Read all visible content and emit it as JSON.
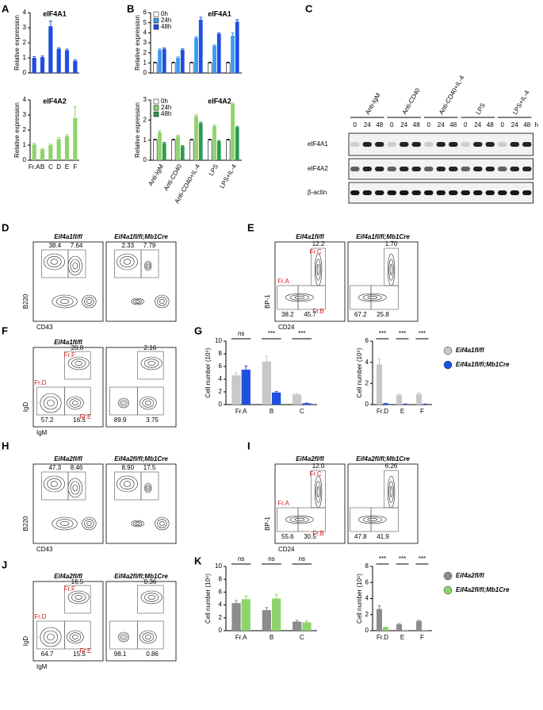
{
  "panel_labels": [
    "A",
    "B",
    "C",
    "D",
    "E",
    "F",
    "G",
    "H",
    "I",
    "J",
    "K"
  ],
  "chart_data": [
    {
      "type": "bar",
      "title": "eIF4A1",
      "y_label": "Relative expression",
      "series": [
        {
          "color": "#1f4fe0",
          "values": [
            1.0,
            1.05,
            3.1,
            1.6,
            1.5,
            0.8
          ],
          "errors": [
            0.08,
            0.08,
            0.35,
            0.07,
            0.08,
            0.07
          ]
        }
      ],
      "ylim": [
        0,
        4
      ],
      "yticks": [
        0,
        1,
        2,
        3,
        4
      ]
    },
    {
      "type": "bar",
      "title": "eIF4A2",
      "y_label": "Relative expression",
      "categories": [
        "Fr.A",
        "B",
        "C",
        "D",
        "E",
        "F"
      ],
      "series": [
        {
          "color": "#8fd46a",
          "values": [
            1.05,
            0.72,
            1.0,
            1.4,
            1.6,
            2.8
          ],
          "errors": [
            0.08,
            0.04,
            0.07,
            0.1,
            0.1,
            0.75
          ]
        }
      ],
      "ylim": [
        0,
        4
      ],
      "yticks": [
        0,
        1,
        2,
        3,
        4
      ]
    },
    {
      "type": "bar",
      "title": "eIF4A1",
      "y_label": "Relative expression",
      "legend": "upper left",
      "series": [
        {
          "name": "0h",
          "color": "#ffffff",
          "values": [
            1,
            1,
            1,
            1,
            1
          ],
          "errors": [
            0.07,
            0.07,
            0.07,
            0.07,
            0.07
          ]
        },
        {
          "name": "24h",
          "color": "#3a9bf0",
          "values": [
            2.3,
            1.5,
            3.5,
            2.7,
            3.7
          ],
          "errors": [
            0.1,
            0.1,
            0.1,
            0.08,
            0.3
          ]
        },
        {
          "name": "48h",
          "color": "#1f4fe0",
          "values": [
            2.4,
            2.3,
            5.3,
            3.9,
            5.1
          ],
          "errors": [
            0.1,
            0.1,
            0.25,
            0.08,
            0.2
          ]
        }
      ],
      "ylim": [
        0,
        6
      ],
      "yticks": [
        0,
        1,
        2,
        3,
        4,
        5,
        6
      ]
    },
    {
      "type": "bar",
      "title": "eIF4A2",
      "y_label": "Relative expression",
      "legend": "upper left",
      "categories": [
        "Anti-IgM",
        "Anti-CD40",
        "Anti-CD40+IL-4",
        "LPS",
        "LPS+IL-4"
      ],
      "series": [
        {
          "name": "0h",
          "color": "#ffffff",
          "values": [
            1,
            1,
            1,
            1,
            1
          ],
          "errors": [
            0.04,
            0.04,
            0.04,
            0.04,
            0.04
          ]
        },
        {
          "name": "24h",
          "color": "#8fd46a",
          "values": [
            1.4,
            1.2,
            2.2,
            1.7,
            2.8
          ],
          "errors": [
            0.08,
            0.05,
            0.06,
            0.05,
            0.05
          ]
        },
        {
          "name": "48h",
          "color": "#2e9a4e",
          "values": [
            0.85,
            0.7,
            1.85,
            0.95,
            1.65
          ],
          "errors": [
            0.04,
            0.03,
            0.05,
            0.03,
            0.04
          ]
        }
      ],
      "ylim": [
        0,
        3
      ],
      "yticks": [
        0,
        1,
        2,
        3
      ]
    },
    {
      "type": "bar",
      "y_label": "Cell number (10⁵)",
      "categories": [
        "Fr.A",
        "B",
        "C"
      ],
      "significance": [
        "ns",
        "***",
        "***"
      ],
      "series": [
        {
          "color": "#c8c8c8",
          "values": [
            4.6,
            6.8,
            1.6
          ],
          "errors": [
            0.4,
            0.8,
            0.15
          ]
        },
        {
          "color": "#1f4fe0",
          "values": [
            5.5,
            1.9,
            0.2
          ],
          "errors": [
            0.6,
            0.15,
            0.03
          ]
        }
      ],
      "ylim": [
        0,
        10
      ],
      "yticks": [
        0,
        2,
        4,
        6,
        8,
        10
      ]
    },
    {
      "type": "bar",
      "y_label": "Cell number (10⁵)",
      "categories": [
        "Fr.D",
        "E",
        "F"
      ],
      "significance": [
        "***",
        "***",
        "***"
      ],
      "legend": "right",
      "series": [
        {
          "name": "Eif4a1fl/fl",
          "color": "#c8c8c8",
          "values": [
            3.8,
            0.9,
            1.0
          ],
          "errors": [
            0.5,
            0.1,
            0.12
          ]
        },
        {
          "name": "Eif4a1fl/fl;Mb1Cre",
          "color": "#1f4fe0",
          "values": [
            0.1,
            0.05,
            0.05
          ],
          "errors": [
            0.02,
            0.01,
            0.01
          ]
        }
      ],
      "ylim": [
        0,
        6
      ],
      "yticks": [
        0,
        2,
        4,
        6
      ]
    },
    {
      "type": "bar",
      "y_label": "Cell number (10⁵)",
      "categories": [
        "Fr.A",
        "B",
        "C"
      ],
      "significance": [
        "ns",
        "ns",
        "ns"
      ],
      "series": [
        {
          "color": "#8c8c8c",
          "values": [
            4.3,
            3.2,
            1.4
          ],
          "errors": [
            0.4,
            0.4,
            0.2
          ]
        },
        {
          "color": "#8fd46a",
          "values": [
            4.9,
            5.0,
            1.3
          ],
          "errors": [
            0.5,
            0.6,
            0.2
          ]
        }
      ],
      "ylim": [
        0,
        10
      ],
      "yticks": [
        0,
        2,
        4,
        6,
        8,
        10
      ]
    },
    {
      "type": "bar",
      "y_label": "Cell number (10⁵)",
      "categories": [
        "Fr.D",
        "E",
        "F"
      ],
      "significance": [
        "***",
        "***",
        "***"
      ],
      "legend": "right",
      "series": [
        {
          "name": "Eif4a2fl/fl",
          "color": "#8c8c8c",
          "values": [
            2.7,
            0.8,
            1.2
          ],
          "errors": [
            0.4,
            0.08,
            0.1
          ]
        },
        {
          "name": "Eif4a2fl/fl;Mb1Cre",
          "color": "#8fd46a",
          "values": [
            0.4,
            0.05,
            0.05
          ],
          "errors": [
            0.05,
            0.01,
            0.01
          ]
        }
      ],
      "ylim": [
        0,
        8
      ],
      "yticks": [
        0,
        2,
        4,
        6,
        8
      ]
    }
  ],
  "blot": {
    "groups": [
      "Anti-IgM",
      "Anti-CD40",
      "Anti-CD40+IL-4",
      "LPS",
      "LPS+IL-4"
    ],
    "times": [
      "0",
      "24",
      "48"
    ],
    "unit": "h",
    "rows": [
      "eIF4A1",
      "eIF4A2",
      "β-actin"
    ]
  },
  "flow": [
    {
      "layout": "b220",
      "x_label": "CD43",
      "y_label": "B220",
      "plots": [
        {
          "title": "Eif4a1fl/fl",
          "gates": [
            "38.4",
            "7.64"
          ]
        },
        {
          "title": "Eif4a1fl/fl;Mb1Cre",
          "gates": [
            "2.33",
            "7.79"
          ]
        }
      ]
    },
    {
      "layout": "bp1",
      "x_label": "CD24",
      "y_label": "BP-1",
      "plots": [
        {
          "title": "Eif4a1fl/fl",
          "gates": [
            "38.2",
            "45.7",
            "12.2"
          ],
          "gate_labels": [
            "Fr.A",
            "Fr.B",
            "Fr.C"
          ]
        },
        {
          "title": "Eif4a1fl/fl;Mb1Cre",
          "gates": [
            "67.2",
            "25.8",
            "1.70"
          ]
        }
      ]
    },
    {
      "layout": "igd",
      "x_label": "IgM",
      "y_label": "IgD",
      "plots": [
        {
          "title": "Eif4a1fl/fl",
          "gates": [
            "20.8",
            "57.2",
            "16.5"
          ],
          "gate_labels": [
            "Fr.F",
            "Fr.D",
            "Fr.E"
          ]
        },
        {
          "gates": [
            "2.16",
            "89.9",
            "3.75"
          ]
        }
      ]
    },
    {
      "layout": "b220",
      "x_label": "CD43",
      "y_label": "B220",
      "plots": [
        {
          "title": "Eif4a2fl/fl",
          "gates": [
            "47.3",
            "8.46"
          ]
        },
        {
          "title": "Eif4a2fl/fl;Mb1Cre",
          "gates": [
            "8.90",
            "17.5"
          ]
        }
      ]
    },
    {
      "layout": "bp1",
      "x_label": "CD24",
      "y_label": "BP-1",
      "plots": [
        {
          "title": "Eif4a2fl/fl",
          "gates": [
            "55.6",
            "30.5",
            "12.0"
          ],
          "gate_labels": [
            "Fr.A",
            "Fr.B",
            "Fr.C"
          ]
        },
        {
          "title": "Eif4a2fl/fl;Mb1Cre",
          "gates": [
            "47.8",
            "41.9",
            "6.26"
          ]
        }
      ]
    },
    {
      "layout": "igd",
      "x_label": "IgM",
      "y_label": "IgD",
      "plots": [
        {
          "title": "Eif4a2fl/fl",
          "gates": [
            "16.5",
            "64.7",
            "15.5"
          ],
          "gate_labels": [
            "Fr.F",
            "Fr.D",
            "Fr.E"
          ]
        },
        {
          "title": "Eif4a2fl/fl;Mb1Cre",
          "gates": [
            "0.36",
            "98.1",
            "0.86"
          ]
        }
      ]
    }
  ]
}
